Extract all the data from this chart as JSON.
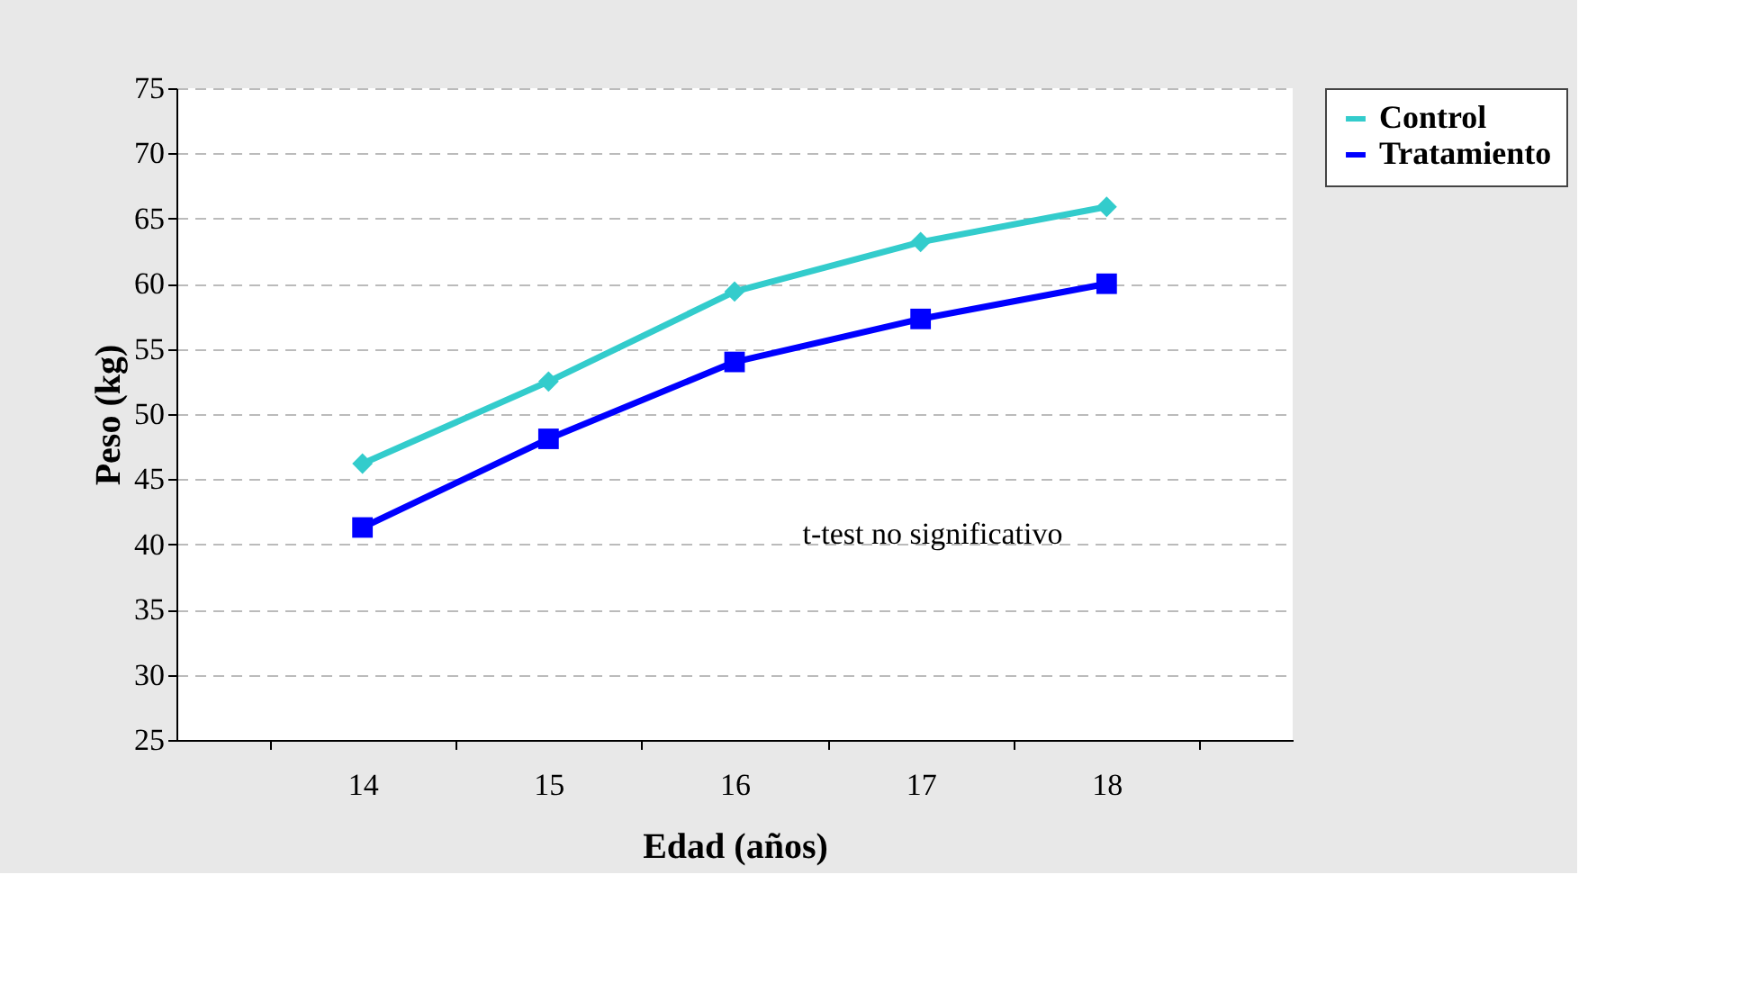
{
  "chart_data": {
    "type": "line",
    "xlabel": "Edad (años)",
    "ylabel": "Peso (kg)",
    "categories": [
      "14",
      "15",
      "16",
      "17",
      "18"
    ],
    "series": [
      {
        "name": "Control",
        "color": "#33cccc",
        "marker": "diamond",
        "values": [
          46.2,
          52.5,
          59.4,
          63.2,
          65.9
        ]
      },
      {
        "name": "Tratamiento",
        "color": "#0000ff",
        "marker": "square",
        "values": [
          41.3,
          48.1,
          54.0,
          57.3,
          60.0
        ]
      }
    ],
    "ylim": [
      25,
      75
    ],
    "yticks": [
      25,
      30,
      35,
      40,
      45,
      50,
      55,
      60,
      65,
      70,
      75
    ],
    "grid": "y",
    "legend": "right",
    "line_style": "solid",
    "annotations": [
      "t-test no significativo"
    ]
  }
}
